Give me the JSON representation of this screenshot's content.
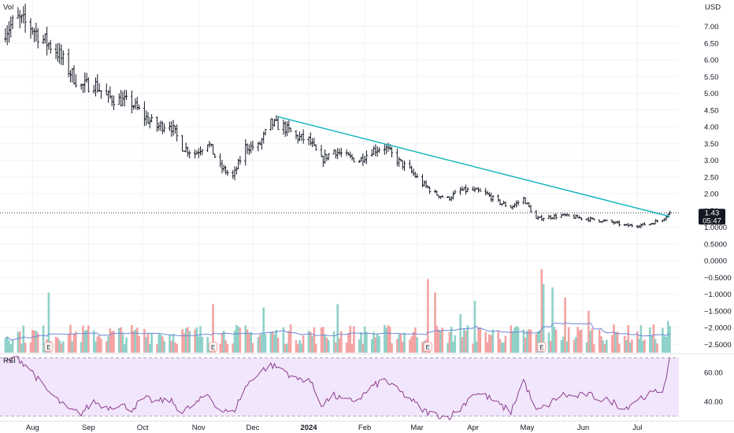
{
  "currency_label": "USD",
  "volume_label": "Vol",
  "rsi_label": "RSI",
  "earnings_marker": "E",
  "price_badge": {
    "value": "1.43",
    "countdown": "05:47"
  },
  "colors": {
    "bar": "#131722",
    "trendline": "#1ab6bf",
    "vol_up": "#8ed1c8",
    "vol_down": "#f4a3a3",
    "vol_ma": "#6d88d6",
    "rsi_line": "#8e3d8e",
    "rsi_band": "#f1e6fb",
    "grid": "#f0f3fa",
    "earnings_border": "#f4a3a3",
    "badge_bg": "#131722"
  },
  "chart_data": {
    "type": "bar",
    "price_axis": {
      "ticks": [
        7.0,
        6.5,
        6.0,
        5.5,
        5.0,
        4.5,
        4.0,
        3.5,
        3.0,
        2.5,
        2.0,
        1.5,
        1.0,
        0.5,
        0.0,
        -0.5,
        -1.0,
        -1.5,
        -2.0,
        -2.5
      ],
      "tick_labels": [
        "7.00",
        "6.50",
        "6.00",
        "5.50",
        "5.00",
        "4.50",
        "4.00",
        "3.50",
        "3.00",
        "2.50",
        "2.00",
        "1.50",
        "1.0000",
        "0.5000",
        "0.0000",
        "−0.5000",
        "−1.0000",
        "−1.5000",
        "−2.0000",
        "−2.5000"
      ],
      "range": [
        -2.75,
        7.6
      ]
    },
    "rsi_axis": {
      "ticks": [
        60,
        40
      ],
      "tick_labels": [
        "60.00",
        "40.00"
      ],
      "range": [
        27,
        72
      ],
      "band": [
        30,
        70
      ]
    },
    "month_labels": [
      {
        "label": "Aug",
        "date": "2023-08-01"
      },
      {
        "label": "Sep",
        "date": "2023-09-01"
      },
      {
        "label": "Oct",
        "date": "2023-10-01"
      },
      {
        "label": "Nov",
        "date": "2023-11-01"
      },
      {
        "label": "Dec",
        "date": "2023-12-01"
      },
      {
        "label": "2024",
        "date": "2024-01-01",
        "bold": true
      },
      {
        "label": "Feb",
        "date": "2024-02-01"
      },
      {
        "label": "Mar",
        "date": "2024-03-01"
      },
      {
        "label": "Apr",
        "date": "2024-04-01"
      },
      {
        "label": "May",
        "date": "2024-05-01"
      },
      {
        "label": "Jun",
        "date": "2024-06-01"
      },
      {
        "label": "Jul",
        "date": "2024-07-01"
      }
    ],
    "earnings_dates": [
      "2023-08-10",
      "2023-11-09",
      "2024-03-07",
      "2024-05-09"
    ],
    "trendline": {
      "start": {
        "date": "2023-12-15",
        "price": 4.3
      },
      "end": {
        "date": "2024-07-19",
        "price": 1.32
      }
    },
    "last_price": 1.43,
    "close_anchors": [
      [
        "2023-07-17",
        6.9
      ],
      [
        "2023-07-24",
        7.2
      ],
      [
        "2023-07-31",
        7.0
      ],
      [
        "2023-08-07",
        6.6
      ],
      [
        "2023-08-14",
        6.3
      ],
      [
        "2023-08-21",
        5.7
      ],
      [
        "2023-08-28",
        5.2
      ],
      [
        "2023-09-04",
        5.3
      ],
      [
        "2023-09-11",
        4.9
      ],
      [
        "2023-09-18",
        4.8
      ],
      [
        "2023-09-25",
        4.7
      ],
      [
        "2023-10-02",
        4.3
      ],
      [
        "2023-10-09",
        4.0
      ],
      [
        "2023-10-16",
        4.1
      ],
      [
        "2023-10-23",
        3.4
      ],
      [
        "2023-10-30",
        3.2
      ],
      [
        "2023-11-06",
        3.55
      ],
      [
        "2023-11-13",
        2.8
      ],
      [
        "2023-11-20",
        2.5
      ],
      [
        "2023-11-27",
        3.4
      ],
      [
        "2023-12-04",
        3.4
      ],
      [
        "2023-12-11",
        4.1
      ],
      [
        "2023-12-18",
        4.0
      ],
      [
        "2023-12-25",
        3.7
      ],
      [
        "2024-01-01",
        3.6
      ],
      [
        "2024-01-08",
        3.0
      ],
      [
        "2024-01-15",
        3.3
      ],
      [
        "2024-01-22",
        3.1
      ],
      [
        "2024-01-29",
        3.0
      ],
      [
        "2024-02-05",
        3.3
      ],
      [
        "2024-02-12",
        3.4
      ],
      [
        "2024-02-19",
        3.0
      ],
      [
        "2024-02-26",
        2.7
      ],
      [
        "2024-03-04",
        2.3
      ],
      [
        "2024-03-11",
        2.0
      ],
      [
        "2024-03-18",
        1.85
      ],
      [
        "2024-03-25",
        2.1
      ],
      [
        "2024-04-01",
        2.1
      ],
      [
        "2024-04-08",
        2.0
      ],
      [
        "2024-04-15",
        1.75
      ],
      [
        "2024-04-22",
        1.6
      ],
      [
        "2024-04-29",
        1.85
      ],
      [
        "2024-05-06",
        1.25
      ],
      [
        "2024-05-13",
        1.3
      ],
      [
        "2024-05-20",
        1.35
      ],
      [
        "2024-05-27",
        1.3
      ],
      [
        "2024-06-03",
        1.25
      ],
      [
        "2024-06-10",
        1.2
      ],
      [
        "2024-06-17",
        1.15
      ],
      [
        "2024-06-24",
        1.05
      ],
      [
        "2024-07-01",
        1.05
      ],
      [
        "2024-07-08",
        1.1
      ],
      [
        "2024-07-15",
        1.25
      ],
      [
        "2024-07-19",
        1.43
      ]
    ],
    "volume_spikes": [
      [
        "2023-08-10",
        -0.95
      ],
      [
        "2023-11-09",
        -1.3
      ],
      [
        "2023-12-07",
        -1.4
      ],
      [
        "2024-01-17",
        -1.3
      ],
      [
        "2024-03-07",
        -0.55
      ],
      [
        "2024-03-11",
        -0.95
      ],
      [
        "2024-03-25",
        -1.6
      ],
      [
        "2024-04-02",
        -1.2
      ],
      [
        "2024-05-09",
        -0.25
      ],
      [
        "2024-05-10",
        -0.7
      ],
      [
        "2024-05-15",
        -0.8
      ],
      [
        "2024-05-22",
        -1.1
      ],
      [
        "2024-06-04",
        -1.5
      ],
      [
        "2024-07-18",
        -1.8
      ]
    ],
    "rsi_anchors": [
      [
        "2023-07-17",
        67
      ],
      [
        "2023-07-24",
        70
      ],
      [
        "2023-07-31",
        62
      ],
      [
        "2023-08-07",
        50
      ],
      [
        "2023-08-14",
        42
      ],
      [
        "2023-08-21",
        34
      ],
      [
        "2023-08-28",
        32
      ],
      [
        "2023-09-04",
        40
      ],
      [
        "2023-09-11",
        36
      ],
      [
        "2023-09-18",
        38
      ],
      [
        "2023-09-25",
        35
      ],
      [
        "2023-10-02",
        42
      ],
      [
        "2023-10-09",
        40
      ],
      [
        "2023-10-16",
        41
      ],
      [
        "2023-10-23",
        33
      ],
      [
        "2023-10-30",
        38
      ],
      [
        "2023-11-06",
        45
      ],
      [
        "2023-11-13",
        34
      ],
      [
        "2023-11-20",
        32
      ],
      [
        "2023-11-27",
        50
      ],
      [
        "2023-12-04",
        60
      ],
      [
        "2023-12-11",
        65
      ],
      [
        "2023-12-18",
        62
      ],
      [
        "2023-12-25",
        55
      ],
      [
        "2024-01-01",
        56
      ],
      [
        "2024-01-08",
        38
      ],
      [
        "2024-01-15",
        44
      ],
      [
        "2024-01-22",
        40
      ],
      [
        "2024-01-29",
        42
      ],
      [
        "2024-02-05",
        50
      ],
      [
        "2024-02-12",
        55
      ],
      [
        "2024-02-19",
        48
      ],
      [
        "2024-02-26",
        42
      ],
      [
        "2024-03-04",
        34
      ],
      [
        "2024-03-11",
        31
      ],
      [
        "2024-03-18",
        29
      ],
      [
        "2024-03-25",
        35
      ],
      [
        "2024-04-01",
        46
      ],
      [
        "2024-04-08",
        44
      ],
      [
        "2024-04-15",
        38
      ],
      [
        "2024-04-22",
        33
      ],
      [
        "2024-04-29",
        55
      ],
      [
        "2024-05-06",
        33
      ],
      [
        "2024-05-13",
        38
      ],
      [
        "2024-05-20",
        45
      ],
      [
        "2024-05-27",
        43
      ],
      [
        "2024-06-03",
        45
      ],
      [
        "2024-06-10",
        42
      ],
      [
        "2024-06-17",
        40
      ],
      [
        "2024-06-24",
        35
      ],
      [
        "2024-07-01",
        42
      ],
      [
        "2024-07-08",
        45
      ],
      [
        "2024-07-15",
        48
      ],
      [
        "2024-07-19",
        68
      ]
    ]
  }
}
